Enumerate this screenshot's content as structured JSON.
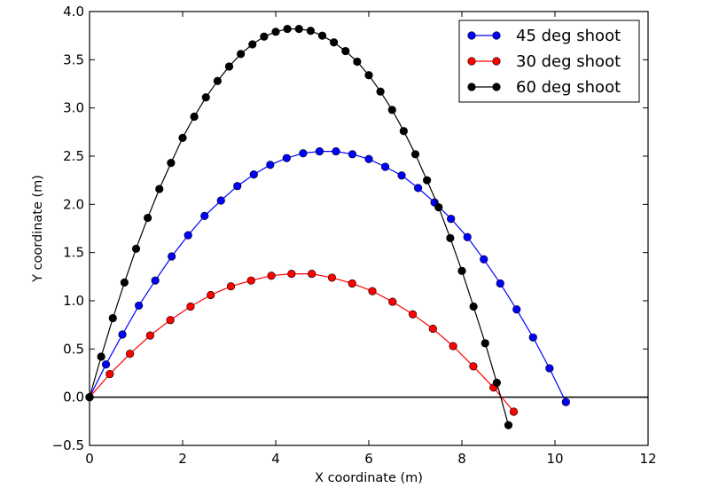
{
  "chart_data": {
    "type": "line",
    "title": "",
    "xlabel": "X coordinate (m)",
    "ylabel": "Y coordinate (m)",
    "xlim": [
      0,
      12
    ],
    "ylim": [
      -0.5,
      4.0
    ],
    "xticks": [
      0,
      2,
      4,
      6,
      8,
      10,
      12
    ],
    "xtick_labels": [
      "0",
      "2",
      "4",
      "6",
      "8",
      "10",
      "12"
    ],
    "yticks": [
      -0.5,
      0.0,
      0.5,
      1.0,
      1.5,
      2.0,
      2.5,
      3.0,
      3.5,
      4.0
    ],
    "ytick_labels": [
      "−0.5",
      "0.0",
      "0.5",
      "1.0",
      "1.5",
      "2.0",
      "2.5",
      "3.0",
      "3.5",
      "4.0"
    ],
    "grid": false,
    "zero_line": true,
    "legend_position": "top-right",
    "series": [
      {
        "name": "45 deg shoot",
        "color": "#0000ff",
        "marker": "circle",
        "x": [
          0,
          0.353,
          0.706,
          1.059,
          1.412,
          1.765,
          2.118,
          2.471,
          2.824,
          3.176,
          3.529,
          3.882,
          4.235,
          4.588,
          4.941,
          5.294,
          5.647,
          6.0,
          6.353,
          6.706,
          7.059,
          7.412,
          7.765,
          8.118,
          8.471,
          8.824,
          9.176,
          9.529,
          9.882,
          10.235
        ],
        "y": [
          0,
          0.34,
          0.65,
          0.95,
          1.21,
          1.46,
          1.68,
          1.88,
          2.04,
          2.19,
          2.31,
          2.41,
          2.48,
          2.53,
          2.55,
          2.55,
          2.52,
          2.47,
          2.39,
          2.3,
          2.17,
          2.02,
          1.85,
          1.66,
          1.43,
          1.18,
          0.91,
          0.62,
          0.3,
          -0.05
        ]
      },
      {
        "name": "30 deg shoot",
        "color": "#ff0000",
        "marker": "circle",
        "x": [
          0,
          0.434,
          0.868,
          1.302,
          1.736,
          2.17,
          2.604,
          3.038,
          3.472,
          3.906,
          4.34,
          4.774,
          5.208,
          5.642,
          6.076,
          6.51,
          6.944,
          7.378,
          7.812,
          8.246,
          8.68,
          9.114
        ],
        "y": [
          0,
          0.24,
          0.45,
          0.64,
          0.8,
          0.94,
          1.06,
          1.15,
          1.21,
          1.26,
          1.28,
          1.28,
          1.24,
          1.18,
          1.1,
          0.99,
          0.86,
          0.71,
          0.53,
          0.32,
          0.1,
          -0.15
        ]
      },
      {
        "name": "60 deg shoot",
        "color": "#000000",
        "marker": "circle",
        "x": [
          0,
          0.25,
          0.5,
          0.75,
          1.0,
          1.25,
          1.5,
          1.75,
          2.0,
          2.25,
          2.5,
          2.75,
          3.0,
          3.25,
          3.5,
          3.75,
          4.0,
          4.25,
          4.5,
          4.75,
          5.0,
          5.25,
          5.5,
          5.75,
          6.0,
          6.25,
          6.5,
          6.75,
          7.0,
          7.25,
          7.5,
          7.75,
          8.0,
          8.25,
          8.5,
          8.75,
          9.0
        ],
        "y": [
          0,
          0.42,
          0.82,
          1.19,
          1.54,
          1.86,
          2.16,
          2.43,
          2.69,
          2.91,
          3.11,
          3.28,
          3.43,
          3.56,
          3.66,
          3.74,
          3.79,
          3.82,
          3.82,
          3.8,
          3.75,
          3.68,
          3.59,
          3.48,
          3.34,
          3.17,
          2.98,
          2.76,
          2.52,
          2.25,
          1.97,
          1.65,
          1.31,
          0.94,
          0.56,
          0.15,
          -0.29
        ]
      }
    ]
  }
}
